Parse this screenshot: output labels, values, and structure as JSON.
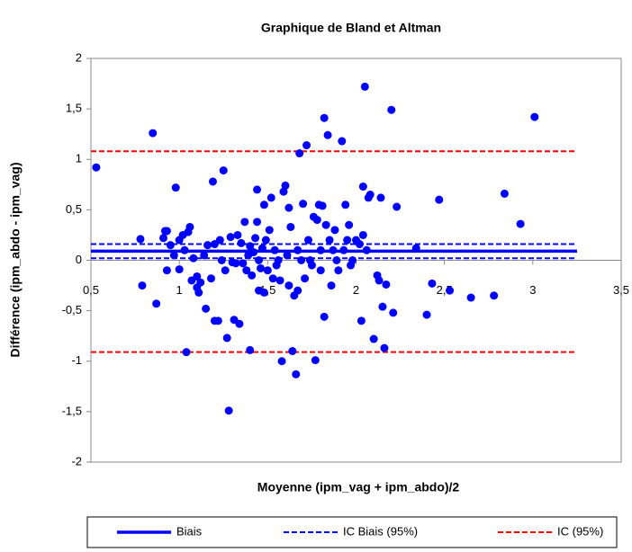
{
  "chart_data": {
    "type": "scatter",
    "title": "Graphique de Bland et Altman",
    "xlabel": "Moyenne (ipm_vag + ipm_abdo)/2",
    "ylabel": "Différence (ipm_abdo - ipm_vag)",
    "xlim": [
      0.5,
      3.5
    ],
    "ylim": [
      -2,
      2
    ],
    "xticks": [
      {
        "value": 0.5,
        "label": "0,5"
      },
      1,
      {
        "value": 1.5,
        "label": "1,5"
      },
      2,
      {
        "value": 2.5,
        "label": "2,5"
      },
      3,
      {
        "value": 3.5,
        "label": "3,5"
      }
    ],
    "yticks": [
      -2,
      {
        "value": -1.5,
        "label": "-1,5"
      },
      -1,
      {
        "value": -0.5,
        "label": "-0,5"
      },
      0,
      {
        "value": 0.5,
        "label": "0,5"
      },
      1,
      {
        "value": 1.5,
        "label": "1,5"
      },
      2
    ],
    "grid": false,
    "legend": "bottom",
    "points": {
      "color": "#0000ff",
      "x": [
        0.53,
        0.78,
        0.79,
        0.85,
        0.87,
        0.91,
        0.92,
        0.93,
        0.93,
        0.95,
        0.97,
        0.98,
        1.0,
        1.0,
        1.02,
        1.03,
        1.04,
        1.05,
        1.06,
        1.07,
        1.08,
        1.1,
        1.1,
        1.11,
        1.12,
        1.14,
        1.15,
        1.16,
        1.18,
        1.19,
        1.2,
        1.2,
        1.22,
        1.23,
        1.24,
        1.25,
        1.26,
        1.27,
        1.28,
        1.29,
        1.3,
        1.31,
        1.32,
        1.33,
        1.34,
        1.35,
        1.36,
        1.37,
        1.38,
        1.39,
        1.4,
        1.4,
        1.41,
        1.42,
        1.43,
        1.44,
        1.44,
        1.45,
        1.45,
        1.46,
        1.47,
        1.48,
        1.48,
        1.49,
        1.5,
        1.51,
        1.52,
        1.53,
        1.54,
        1.55,
        1.56,
        1.57,
        1.58,
        1.59,
        1.6,
        1.61,
        1.62,
        1.62,
        1.63,
        1.64,
        1.65,
        1.66,
        1.67,
        1.67,
        1.68,
        1.69,
        1.7,
        1.71,
        1.72,
        1.73,
        1.74,
        1.75,
        1.76,
        1.77,
        1.78,
        1.79,
        1.8,
        1.8,
        1.81,
        1.82,
        1.82,
        1.83,
        1.84,
        1.85,
        1.86,
        1.87,
        1.88,
        1.89,
        1.9,
        1.92,
        1.93,
        1.94,
        1.95,
        1.96,
        1.97,
        1.98,
        2.0,
        2.02,
        2.03,
        2.04,
        2.04,
        2.05,
        2.06,
        2.07,
        2.08,
        2.1,
        2.12,
        2.13,
        2.14,
        2.15,
        2.16,
        2.17,
        2.2,
        2.21,
        2.23,
        2.34,
        2.4,
        2.43,
        2.47,
        2.53,
        2.65,
        2.78,
        2.84,
        2.93,
        3.01
      ],
      "values": [
        0.92,
        0.21,
        -0.25,
        1.26,
        -0.43,
        0.22,
        0.29,
        0.29,
        -0.1,
        0.15,
        0.05,
        0.72,
        0.2,
        -0.09,
        0.25,
        0.1,
        -0.91,
        0.28,
        0.33,
        -0.2,
        0.02,
        -0.16,
        -0.27,
        -0.32,
        -0.22,
        0.05,
        -0.48,
        0.15,
        -0.18,
        0.78,
        -0.6,
        0.16,
        -0.6,
        0.2,
        0.0,
        0.89,
        -0.1,
        -0.77,
        -1.49,
        0.23,
        -0.02,
        -0.59,
        -0.03,
        0.25,
        -0.63,
        0.17,
        -0.03,
        0.38,
        -0.1,
        0.05,
        0.14,
        -0.89,
        -0.15,
        0.08,
        0.22,
        0.7,
        0.38,
        -0.3,
        0.0,
        -0.08,
        0.12,
        0.55,
        -0.32,
        0.2,
        -0.1,
        0.3,
        0.62,
        -0.18,
        0.1,
        -0.05,
        0.0,
        -0.2,
        -1.0,
        0.68,
        0.74,
        0.05,
        0.52,
        -0.25,
        0.33,
        -0.9,
        -0.35,
        -1.13,
        -0.3,
        0.1,
        1.06,
        0.0,
        0.56,
        -0.18,
        1.14,
        0.2,
        0.0,
        -0.05,
        0.43,
        -0.99,
        0.4,
        0.55,
        0.1,
        -0.1,
        0.54,
        1.41,
        -0.56,
        0.35,
        1.24,
        0.2,
        -0.25,
        0.1,
        0.3,
        0.0,
        -0.1,
        1.18,
        0.1,
        0.55,
        0.2,
        0.35,
        -0.05,
        0.0,
        0.2,
        0.16,
        -0.6,
        0.73,
        0.25,
        1.72,
        0.1,
        0.62,
        0.65,
        -0.78,
        -0.15,
        -0.2,
        0.62,
        -0.46,
        -0.87,
        -0.24,
        1.49,
        -0.52,
        0.53,
        0.12,
        -0.54,
        -0.23,
        0.6,
        -0.3,
        -0.37,
        -0.35,
        0.66,
        0.36,
        1.42
      ]
    },
    "line_xlim": [
      0.5,
      3.25
    ],
    "series": [
      {
        "name": "Biais",
        "color": "#0000ff",
        "style": "solid",
        "values": [
          0.09
        ]
      },
      {
        "name": "IC Biais (95%)",
        "color": "#0000ff",
        "style": "dashed",
        "values": [
          0.16,
          0.02
        ]
      },
      {
        "name": "IC (95%)",
        "color": "#ff0000",
        "style": "dashed",
        "values": [
          1.08,
          -0.91
        ]
      }
    ]
  }
}
